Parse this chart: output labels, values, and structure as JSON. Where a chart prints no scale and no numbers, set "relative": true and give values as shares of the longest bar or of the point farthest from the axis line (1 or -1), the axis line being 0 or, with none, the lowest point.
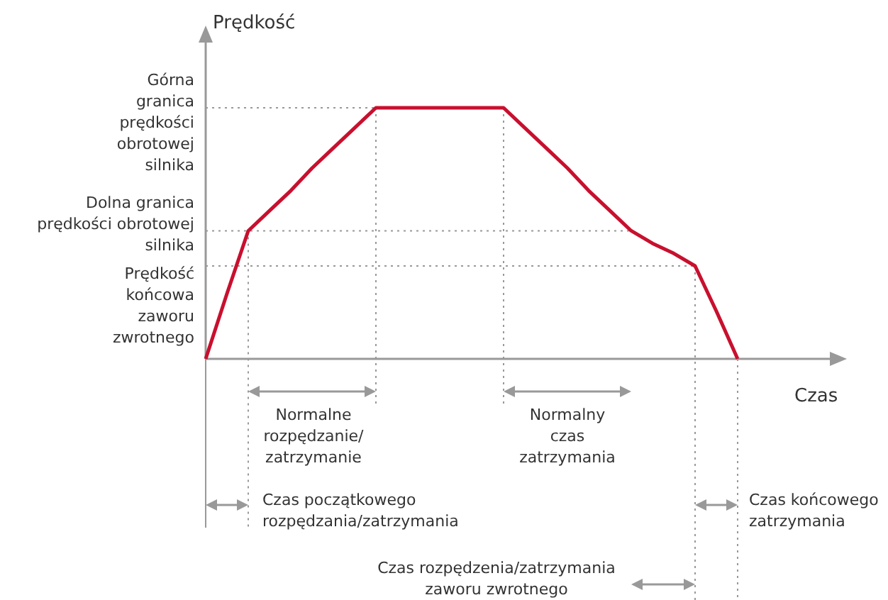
{
  "chart_data": {
    "type": "line",
    "relative": true,
    "xlabel": "Czas",
    "ylabel": "Prędkość",
    "categories": [
      null,
      null,
      null,
      null,
      null,
      null,
      null,
      null,
      null,
      null,
      null,
      null,
      null,
      null,
      null,
      null,
      null,
      null,
      null,
      null,
      null,
      null,
      null,
      null,
      null,
      null,
      null,
      null,
      null,
      null
    ],
    "series": [
      {
        "color": "#c8102e",
        "values": [
          0,
          0.26,
          0.51,
          0.59,
          0.67,
          0.76,
          0.84,
          0.92,
          1,
          1,
          1,
          1,
          1,
          1,
          1,
          0.92,
          0.84,
          0.76,
          0.67,
          0.59,
          0.51,
          0.46,
          0.42,
          0.37,
          0.19,
          0,
          null,
          null,
          null,
          null
        ]
      }
    ],
    "grid": true,
    "annotations": [
      "Górna\ngranica\nprędkości\nobrotowej\nsilnika",
      "Dolna granica\nprędkości obrotowej\nsilnika",
      "Prędkość\nkońcowa\nzaworu\nzwrotnego",
      "Normalne\nrozpędzanie/\nzatrzymanie",
      "Normalny\nczas\nzatrzymania",
      "Czas początkowego\nrozpędzania/zatrzymania",
      "Czas końcowego\nzatrzymania",
      "Czas rozpędzenia/zatrzymania\nzaworu zwrotnego"
    ]
  }
}
